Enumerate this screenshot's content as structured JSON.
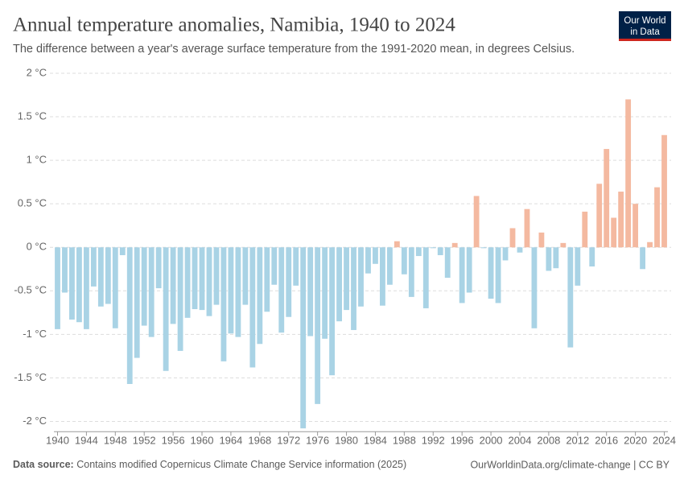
{
  "chart_data": {
    "type": "bar",
    "title": "Annual temperature anomalies, Namibia, 1940 to 2024",
    "subtitle": "The difference between a year's average surface temperature from the 1991-2020 mean, in degrees Celsius.",
    "logo": [
      "Our World",
      "in Data"
    ],
    "source_label": "Data source:",
    "source": "Contains modified Copernicus Climate Change Service information (2025)",
    "credit": "OurWorldinData.org/climate-change | CC BY",
    "categories": [
      1940,
      1941,
      1942,
      1943,
      1944,
      1945,
      1946,
      1947,
      1948,
      1949,
      1950,
      1951,
      1952,
      1953,
      1954,
      1955,
      1956,
      1957,
      1958,
      1959,
      1960,
      1961,
      1962,
      1963,
      1964,
      1965,
      1966,
      1967,
      1968,
      1969,
      1970,
      1971,
      1972,
      1973,
      1974,
      1975,
      1976,
      1977,
      1978,
      1979,
      1980,
      1981,
      1982,
      1983,
      1984,
      1985,
      1986,
      1987,
      1988,
      1989,
      1990,
      1991,
      1992,
      1993,
      1994,
      1995,
      1996,
      1997,
      1998,
      1999,
      2000,
      2001,
      2002,
      2003,
      2004,
      2005,
      2006,
      2007,
      2008,
      2009,
      2010,
      2011,
      2012,
      2013,
      2014,
      2015,
      2016,
      2017,
      2018,
      2019,
      2020,
      2021,
      2022,
      2023,
      2024
    ],
    "values": [
      -0.94,
      -0.52,
      -0.83,
      -0.86,
      -0.94,
      -0.45,
      -0.68,
      -0.65,
      -0.93,
      -0.09,
      -1.57,
      -1.27,
      -0.9,
      -1.03,
      -0.47,
      -1.42,
      -0.88,
      -1.19,
      -0.81,
      -0.71,
      -0.72,
      -0.79,
      -0.66,
      -1.31,
      -0.99,
      -1.03,
      -0.66,
      -1.38,
      -1.11,
      -0.74,
      -0.43,
      -0.98,
      -0.8,
      -0.44,
      -2.08,
      -1.02,
      -1.8,
      -1.05,
      -1.47,
      -0.85,
      -0.72,
      -0.95,
      -0.68,
      -0.3,
      -0.19,
      -0.67,
      -0.43,
      0.07,
      -0.31,
      -0.57,
      -0.1,
      -0.7,
      -0.01,
      -0.09,
      -0.35,
      0.05,
      -0.64,
      -0.52,
      0.59,
      -0.01,
      -0.59,
      -0.64,
      -0.15,
      0.22,
      -0.06,
      0.44,
      -0.93,
      0.17,
      -0.27,
      -0.24,
      0.05,
      -1.15,
      -0.44,
      0.41,
      -0.22,
      0.73,
      1.13,
      0.34,
      0.64,
      1.7,
      0.5,
      -0.25,
      0.06,
      0.69,
      1.29
    ],
    "colors": {
      "positive": "#f4b9a0",
      "negative": "#a9d3e5"
    },
    "ylim": [
      -2.1,
      2
    ],
    "yticks": [
      {
        "value": 2,
        "label": "2 °C"
      },
      {
        "value": 1.5,
        "label": "1.5 °C"
      },
      {
        "value": 1,
        "label": "1 °C"
      },
      {
        "value": 0.5,
        "label": "0.5 °C"
      },
      {
        "value": 0,
        "label": "0 °C"
      },
      {
        "value": -0.5,
        "label": "-0.5 °C"
      },
      {
        "value": -1,
        "label": "-1 °C"
      },
      {
        "value": -1.5,
        "label": "-1.5 °C"
      },
      {
        "value": -2,
        "label": "-2 °C"
      }
    ],
    "xticks": [
      1940,
      1944,
      1948,
      1952,
      1956,
      1960,
      1964,
      1968,
      1972,
      1976,
      1980,
      1984,
      1988,
      1992,
      1996,
      2000,
      2004,
      2008,
      2012,
      2016,
      2020,
      2024
    ],
    "grid": true
  }
}
